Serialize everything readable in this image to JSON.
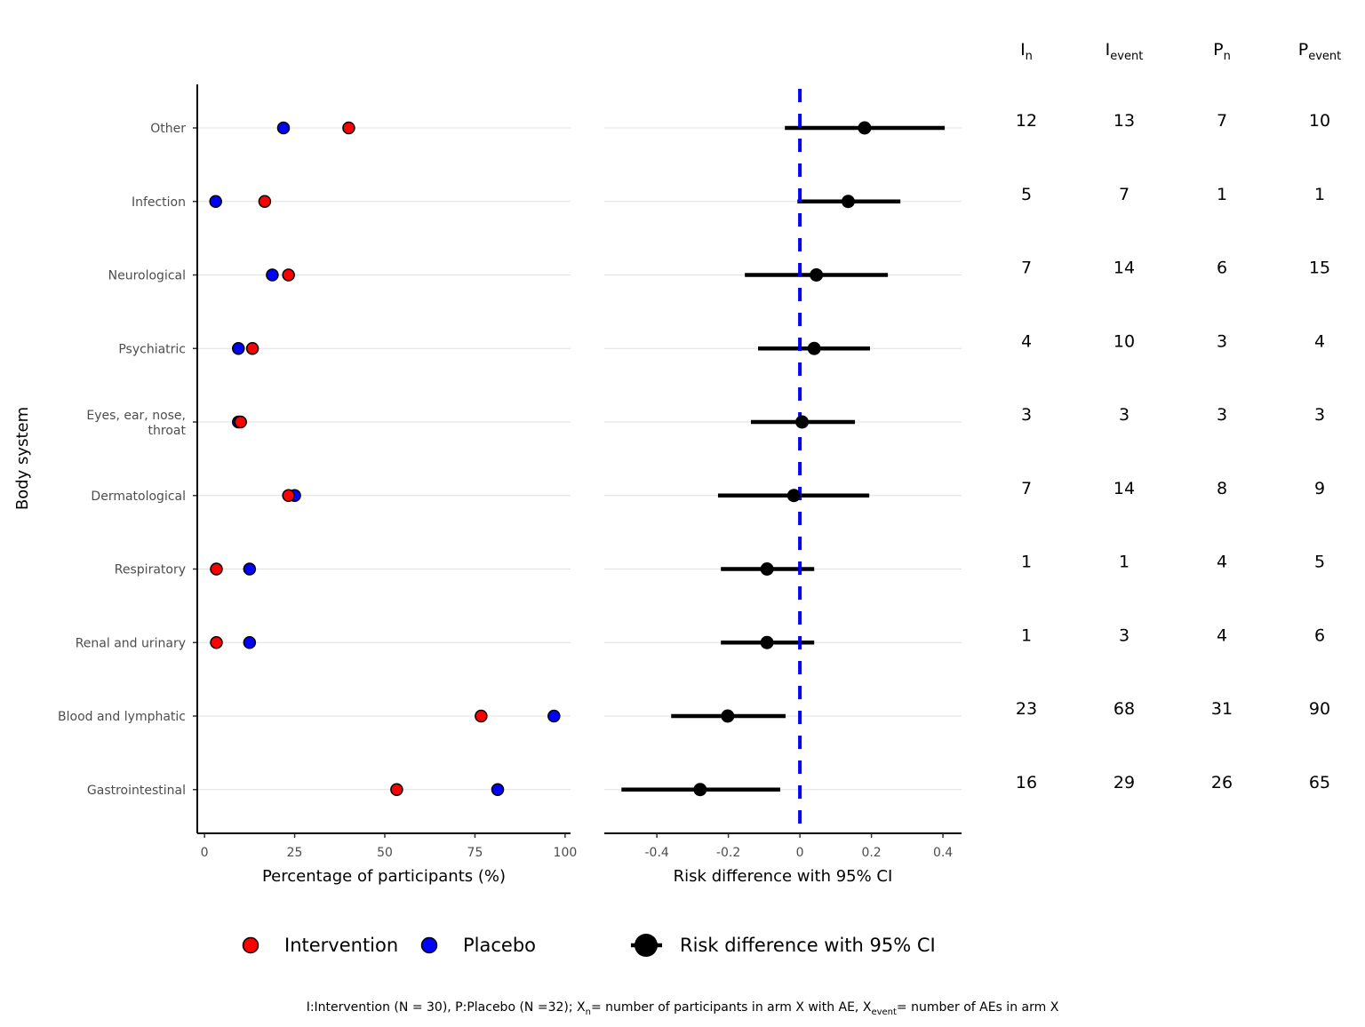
{
  "chart_data": {
    "type": "scatter",
    "ylabel": "Body system",
    "categories": [
      "Other",
      "Infection",
      "Neurological",
      "Psychiatric",
      "Eyes, ear, nose,\nthroat",
      "Dermatological",
      "Respiratory",
      "Renal and urinary",
      "Blood and lymphatic",
      "Gastrointestinal"
    ],
    "left_panel": {
      "xlabel": "Percentage of participants (%)",
      "xlim": [
        -2,
        101.5
      ],
      "xticks": [
        0,
        25,
        50,
        75,
        100
      ],
      "series": [
        {
          "name": "Intervention",
          "color": "#ff0000",
          "values": [
            40.0,
            16.7,
            23.3,
            13.3,
            10.0,
            23.3,
            3.3,
            3.3,
            76.7,
            53.3
          ]
        },
        {
          "name": "Placebo",
          "color": "#0000ff",
          "values": [
            21.9,
            3.1,
            18.8,
            9.4,
            9.4,
            25.0,
            12.5,
            12.5,
            96.9,
            81.3
          ]
        }
      ]
    },
    "right_panel": {
      "xlabel": "Risk difference with 95% CI",
      "xlim": [
        -0.547,
        0.452
      ],
      "xticks": [
        -0.4,
        -0.2,
        0,
        0.2,
        0.4
      ],
      "xtick_labels": [
        "-0.4",
        "-0.2",
        "0",
        "0.2",
        "0.4"
      ],
      "reference_line": 0,
      "reference_color": "#0000ff",
      "series": {
        "name": "Risk difference with 95% CI",
        "color": "#000000",
        "estimate": [
          0.181,
          0.135,
          0.046,
          0.04,
          0.006,
          -0.017,
          -0.092,
          -0.092,
          -0.202,
          -0.279
        ],
        "lower": [
          -0.042,
          -0.007,
          -0.154,
          -0.117,
          -0.137,
          -0.229,
          -0.221,
          -0.221,
          -0.36,
          -0.499
        ],
        "upper": [
          0.405,
          0.281,
          0.246,
          0.196,
          0.154,
          0.194,
          0.04,
          0.04,
          -0.04,
          -0.055
        ]
      }
    },
    "table": {
      "headers": [
        {
          "main": "I",
          "sub": "n"
        },
        {
          "main": "I",
          "sub": "event"
        },
        {
          "main": "P",
          "sub": "n"
        },
        {
          "main": "P",
          "sub": "event"
        }
      ],
      "rows": [
        [
          "12",
          "13",
          "7",
          "10"
        ],
        [
          "5",
          "7",
          "1",
          "1"
        ],
        [
          "7",
          "14",
          "6",
          "15"
        ],
        [
          "4",
          "10",
          "3",
          "4"
        ],
        [
          "3",
          "3",
          "3",
          "3"
        ],
        [
          "7",
          "14",
          "8",
          "9"
        ],
        [
          "1",
          "1",
          "4",
          "5"
        ],
        [
          "1",
          "3",
          "4",
          "6"
        ],
        [
          "23",
          "68",
          "31",
          "90"
        ],
        [
          "16",
          "29",
          "26",
          "65"
        ]
      ]
    },
    "legend": {
      "position": "bottom",
      "items": [
        "Intervention",
        "Placebo",
        "Risk difference with 95% CI"
      ]
    },
    "footnote": [
      {
        "t": "I:Intervention (N = 30), P:Placebo (N =32); X"
      },
      {
        "t": "n",
        "sub": true
      },
      {
        "t": "= number of participants in arm X with AE, X"
      },
      {
        "t": "event",
        "sub": true
      },
      {
        "t": "= number of AEs in arm X"
      }
    ]
  }
}
